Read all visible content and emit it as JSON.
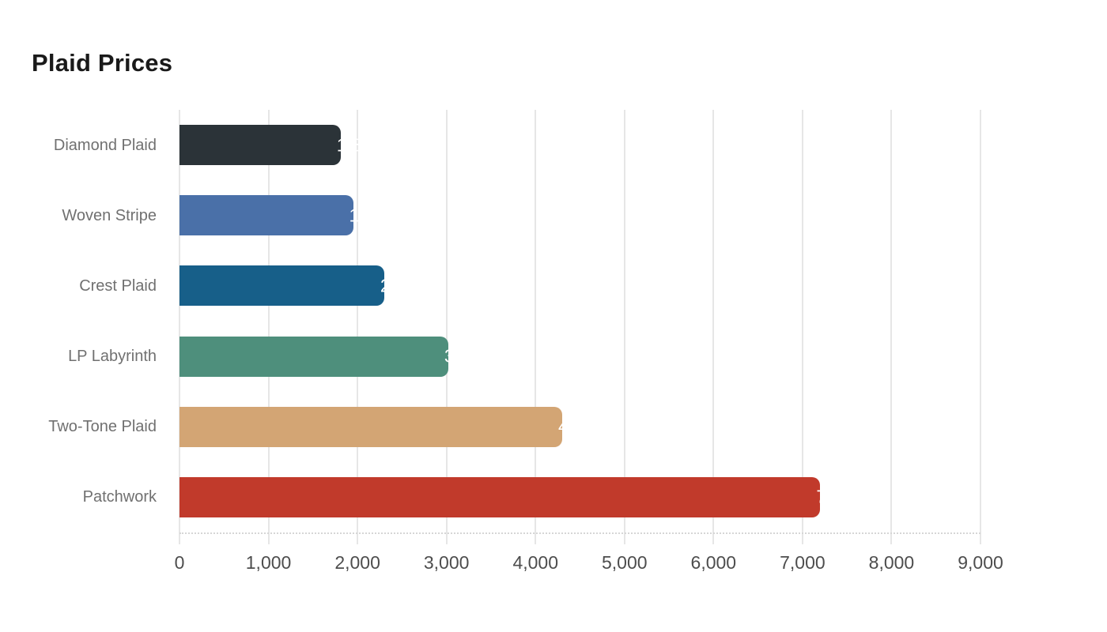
{
  "title": "Plaid Prices",
  "chart_data": {
    "type": "bar",
    "orientation": "horizontal",
    "title": "Plaid Prices",
    "xlabel": "",
    "ylabel": "",
    "categories": [
      "Diamond Plaid",
      "Woven Stripe",
      "Crest Plaid",
      "LP Labyrinth",
      "Two-Tone Plaid",
      "Patchwork"
    ],
    "values": [
      1810,
      1950,
      2300,
      3020,
      4300,
      7200
    ],
    "value_labels_visible": "clipped-white-at-bar-end",
    "bar_colors": [
      "#2b3338",
      "#4a70a8",
      "#175f89",
      "#4e8f7c",
      "#d3a574",
      "#c13a2b"
    ],
    "xlim": [
      0,
      9000
    ],
    "x_tick_values": [
      0,
      1000,
      2000,
      3000,
      4000,
      5000,
      6000,
      7000,
      8000,
      9000
    ],
    "x_tick_labels": [
      "0",
      "1,000",
      "2,000",
      "3,000",
      "4,000",
      "5,000",
      "6,000",
      "7,000",
      "8,000",
      "9,000"
    ],
    "grid": "vertical",
    "legend": false
  },
  "colors": {
    "background": "#ffffff",
    "title_text": "#1a1a1a",
    "category_label": "#707070",
    "tick_label": "#4d4d4d",
    "gridline": "#e6e6e6",
    "axis_baseline_dotted": "#d6d6d6",
    "value_label": "#ffffff"
  }
}
